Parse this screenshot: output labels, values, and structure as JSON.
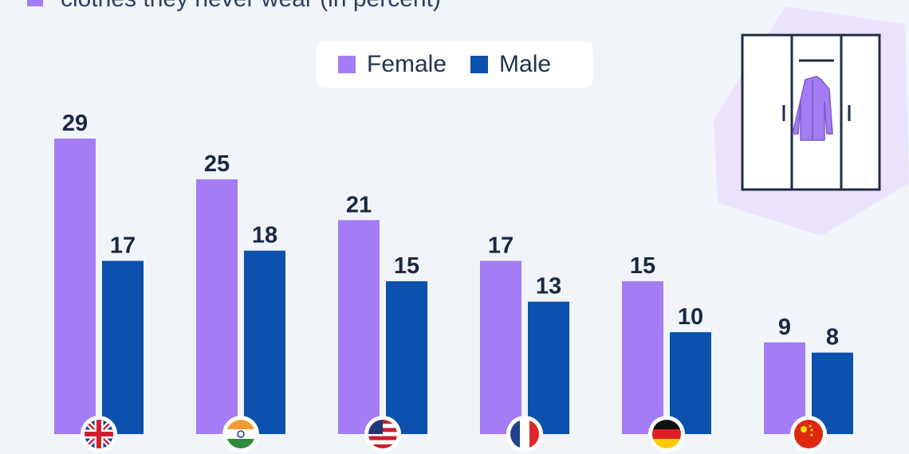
{
  "header": {
    "subtitle": "clothes they never wear (in percent)"
  },
  "legend": {
    "female_label": "Female",
    "male_label": "Male"
  },
  "colors": {
    "female": "#a47cf4",
    "male": "#0b51ad",
    "label": "#192842",
    "background": "#f1f5fa",
    "wardrobe_bg": "#ebe3fb"
  },
  "icons": {
    "illustration": "wardrobe-icon",
    "flags": [
      "uk-flag-icon",
      "india-flag-icon",
      "usa-flag-icon",
      "france-flag-icon",
      "germany-flag-icon",
      "china-flag-icon"
    ]
  },
  "chart_data": {
    "type": "bar",
    "categories": [
      "United Kingdom",
      "India",
      "United States",
      "France",
      "Germany",
      "China"
    ],
    "series": [
      {
        "name": "Female",
        "values": [
          29,
          25,
          21,
          17,
          15,
          9
        ]
      },
      {
        "name": "Male",
        "values": [
          17,
          18,
          15,
          13,
          10,
          8
        ]
      }
    ],
    "title": "",
    "xlabel": "",
    "ylabel": "",
    "ylim": [
      0,
      29
    ],
    "grid": false,
    "legend_position": "top-center"
  }
}
